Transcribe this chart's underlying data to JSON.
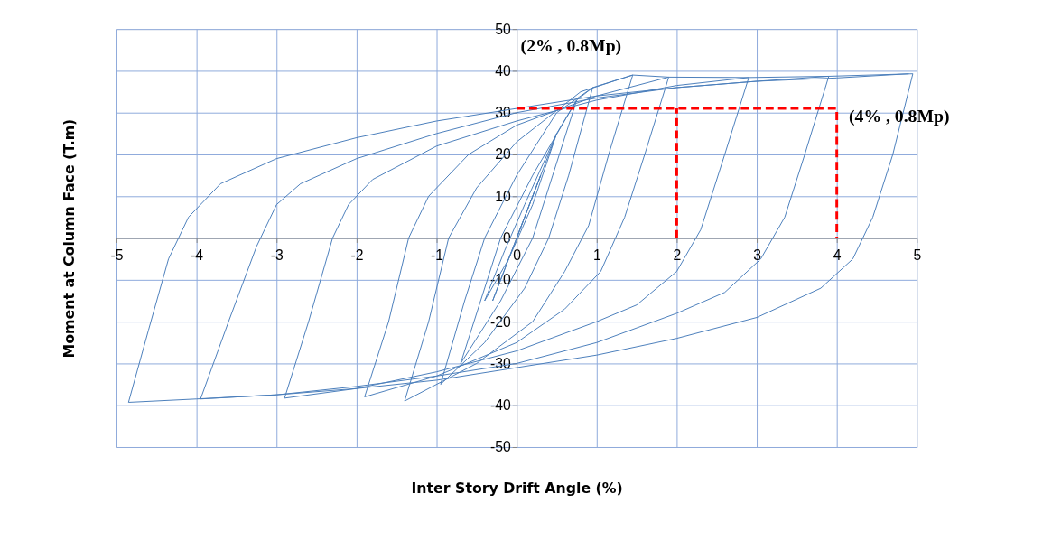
{
  "chart_data": {
    "type": "line",
    "xlabel": "Inter Story Drift Angle (%)",
    "ylabel": "Moment at Column Face (T.m)",
    "xlim": [
      -5,
      5
    ],
    "ylim": [
      -50,
      50
    ],
    "xticks": [
      -5,
      -4,
      -3,
      -2,
      -1,
      0,
      1,
      2,
      3,
      4,
      5
    ],
    "yticks": [
      -50,
      -40,
      -30,
      -20,
      -10,
      0,
      10,
      20,
      30,
      40,
      50
    ],
    "grid": true,
    "series": [
      {
        "color": "#4a7ebb",
        "x": [
          0,
          0.3,
          0.1,
          -0.3,
          0,
          0.5,
          0.2,
          -0.1,
          -0.4,
          -0.15,
          0.1,
          0.5,
          0.75,
          0.45,
          0.2,
          -0.2,
          -0.7,
          -0.45,
          -0.2,
          0.2,
          0.75,
          0.95,
          0.65,
          0.4,
          0.1,
          -0.4,
          -0.95,
          -0.65,
          -0.4,
          0,
          0.5,
          0.95,
          1.45,
          1.15,
          0.9,
          0.6,
          0.2,
          -0.5,
          -1.4,
          -1.1,
          -0.85,
          -0.5,
          0,
          0.8,
          1.45,
          1.9,
          1.6,
          1.35,
          1.05,
          0.6,
          0,
          -1,
          -1.9,
          -1.6,
          -1.35,
          -1.1,
          -0.6,
          0,
          1,
          1.9,
          2.9,
          2.6,
          2.3,
          2.0,
          1.5,
          1,
          0,
          -1,
          -2,
          -2.9,
          -2.6,
          -2.3,
          -2.1,
          -1.8,
          -1,
          0,
          1,
          2,
          2.9,
          3.9,
          3.6,
          3.35,
          3.05,
          2.6,
          2,
          1,
          0,
          -1,
          -2,
          -3,
          -3.95,
          -3.6,
          -3.25,
          -3.0,
          -2.7,
          -2,
          -1,
          0,
          1,
          2,
          3,
          3.9,
          4.95,
          4.7,
          4.45,
          4.2,
          3.8,
          3.0,
          2.0,
          1.0,
          0,
          -1,
          -2,
          -3,
          -4,
          -4.85,
          -4.6,
          -4.35,
          -4.1,
          -3.7,
          -3,
          -2,
          -1,
          0,
          1,
          2,
          3,
          4,
          4.9
        ],
        "values": [
          0,
          15,
          5,
          -15,
          0,
          25,
          8,
          -5,
          -15,
          -3,
          8,
          25,
          33,
          15,
          0,
          -15,
          -30,
          -15,
          0,
          15,
          33,
          36,
          15,
          0,
          -12,
          -25,
          -35,
          -15,
          0,
          15,
          30,
          36,
          39,
          20,
          3,
          -8,
          -20,
          -30,
          -39,
          -20,
          0,
          12,
          23,
          35,
          39,
          38.5,
          20,
          5,
          -8,
          -17,
          -25,
          -33,
          -38,
          -20,
          0,
          10,
          20,
          27,
          34,
          38.5,
          38.4,
          20,
          2,
          -8,
          -16,
          -20,
          -27,
          -32,
          -36,
          -38.3,
          -20,
          0,
          8,
          14,
          22,
          28,
          33,
          36.5,
          38.4,
          38.7,
          20,
          5,
          -5,
          -13,
          -18,
          -25,
          -30,
          -33,
          -35.5,
          -37.5,
          -38.5,
          -20,
          -2,
          8,
          13,
          19,
          25,
          30,
          33.5,
          36,
          37.5,
          38.7,
          39.3,
          20,
          5,
          -5,
          -12,
          -19,
          -24,
          -28,
          -31,
          -34,
          -36,
          -37.5,
          -38.5,
          -39.3,
          -22,
          -5,
          5,
          13,
          19,
          24,
          28,
          31,
          34,
          36,
          37.5,
          38.3,
          39.3
        ]
      },
      {
        "color": "#ff0000",
        "line_style": "dashed",
        "x": [
          0,
          4,
          4
        ],
        "values": [
          31,
          31,
          0
        ]
      },
      {
        "color": "#ff0000",
        "line_style": "dashed",
        "x": [
          2,
          2
        ],
        "values": [
          0,
          31
        ]
      }
    ],
    "annotations": [
      "(2% , 0.8Mp)",
      "(4% , 0.8Mp)"
    ]
  }
}
